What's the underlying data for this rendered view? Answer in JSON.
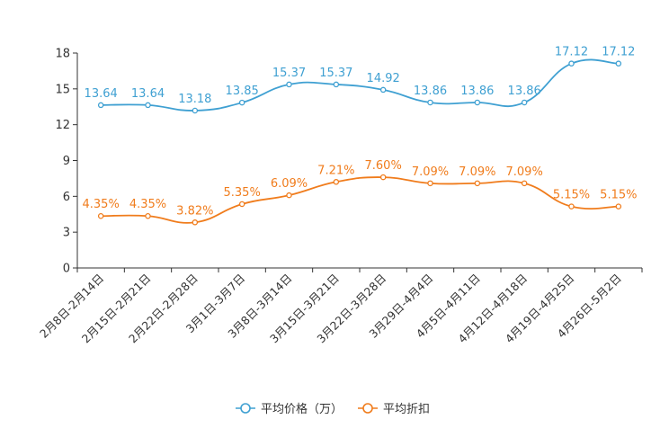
{
  "chart_data": {
    "type": "line",
    "categories": [
      "2月8日-2月14日",
      "2月15日-2月21日",
      "2月22日-2月28日",
      "3月1日-3月7日",
      "3月8日-3月14日",
      "3月15日-3月21日",
      "3月22日-3月28日",
      "3月29日-4月4日",
      "4月5日-4月11日",
      "4月12日-4月18日",
      "4月19日-4月25日",
      "4月26日-5月2日"
    ],
    "series": [
      {
        "name": "平均价格（万）",
        "color": "#3fa0d2",
        "values": [
          13.64,
          13.64,
          13.18,
          13.85,
          15.37,
          15.37,
          14.92,
          13.86,
          13.86,
          13.86,
          17.12,
          17.12
        ],
        "labels": [
          "13.64",
          "13.64",
          "13.18",
          "13.85",
          "15.37",
          "15.37",
          "14.92",
          "13.86",
          "13.86",
          "13.86",
          "17.12",
          "17.12"
        ]
      },
      {
        "name": "平均折扣",
        "color": "#f07c1c",
        "values": [
          4.35,
          4.35,
          3.82,
          5.35,
          6.09,
          7.21,
          7.6,
          7.09,
          7.09,
          7.09,
          5.15,
          5.15
        ],
        "labels": [
          "4.35%",
          "4.35%",
          "3.82%",
          "5.35%",
          "6.09%",
          "7.21%",
          "7.60%",
          "7.09%",
          "7.09%",
          "7.09%",
          "5.15%",
          "5.15%"
        ]
      }
    ],
    "ylim": [
      0,
      18
    ],
    "yticks": [
      "0",
      "3",
      "6",
      "9",
      "12",
      "15",
      "18"
    ],
    "title": "",
    "xlabel": "",
    "ylabel": "",
    "legend_position": "bottom"
  }
}
